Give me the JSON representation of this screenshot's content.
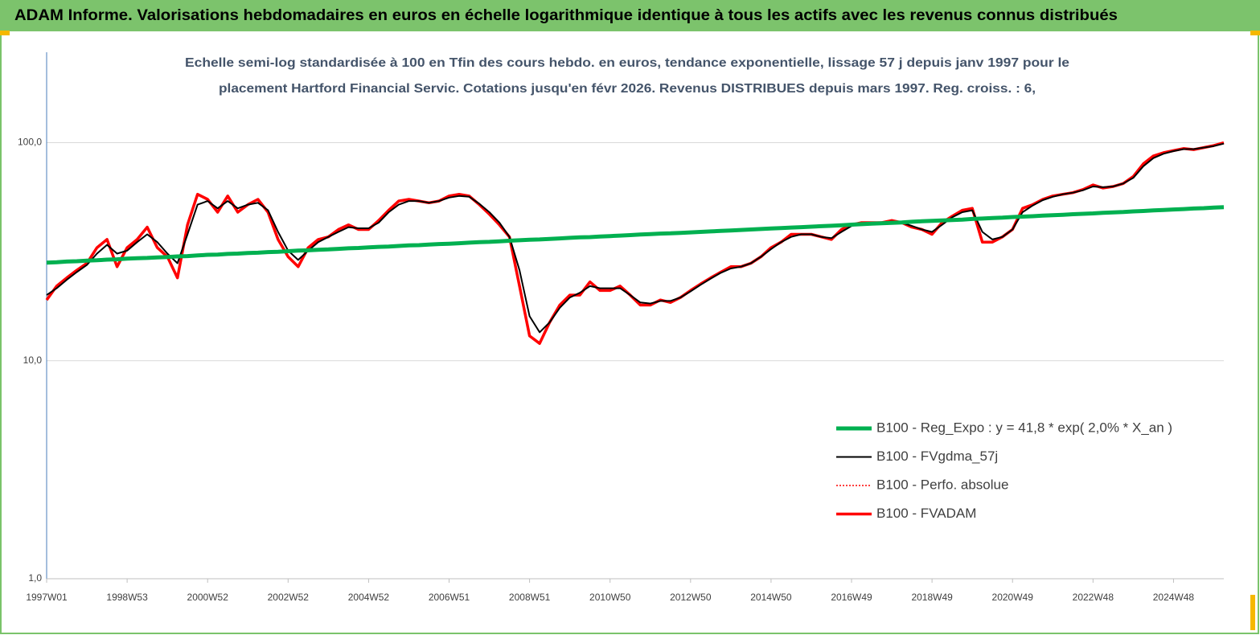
{
  "chart_data": {
    "type": "line",
    "title": "ADAM Informe. Valorisations hebdomadaires en euros en échelle logarithmique identique à tous les actifs avec les revenus connus distribués",
    "subtitle": [
      "Echelle semi-log standardisée à 100 en Tfin des cours hebdo. en euros, tendance exponentielle, lissage 57 j depuis janv 1997 pour le",
      "placement Hartford Financial Servic. Cotations jusqu'en févr 2026. Revenus DISTRIBUES depuis mars 1997. Reg. croiss. : 6,"
    ],
    "log_scale": true,
    "grid": true,
    "legend": "lower right",
    "ylim": [
      1,
      260
    ],
    "yticks": [
      {
        "value": 1,
        "label": "1,0"
      },
      {
        "value": 10,
        "label": "10,0"
      },
      {
        "value": 100,
        "label": "100,0"
      }
    ],
    "categories": [
      "1997W01",
      null,
      null,
      null,
      null,
      null,
      null,
      null,
      "1998W53",
      null,
      null,
      null,
      null,
      null,
      null,
      null,
      "2000W52",
      null,
      null,
      null,
      null,
      null,
      null,
      null,
      "2002W52",
      null,
      null,
      null,
      null,
      null,
      null,
      null,
      "2004W52",
      null,
      null,
      null,
      null,
      null,
      null,
      null,
      "2006W51",
      null,
      null,
      null,
      null,
      null,
      null,
      null,
      "2008W51",
      null,
      null,
      null,
      null,
      null,
      null,
      null,
      "2010W50",
      null,
      null,
      null,
      null,
      null,
      null,
      null,
      "2012W50",
      null,
      null,
      null,
      null,
      null,
      null,
      null,
      "2014W50",
      null,
      null,
      null,
      null,
      null,
      null,
      null,
      "2016W49",
      null,
      null,
      null,
      null,
      null,
      null,
      null,
      "2018W49",
      null,
      null,
      null,
      null,
      null,
      null,
      null,
      "2020W49",
      null,
      null,
      null,
      null,
      null,
      null,
      null,
      "2022W48",
      null,
      null,
      null,
      null,
      null,
      null,
      null,
      "2024W48",
      null,
      null,
      null,
      null,
      null
    ],
    "series": [
      {
        "name": "B100 - Reg_Expo : y = 41,8 *  exp( 2,0% *  X_an )",
        "color": "#00b050",
        "linewidth": 5,
        "style": "solid",
        "values": [
          28.2,
          28.3,
          28.5,
          28.6,
          28.8,
          28.9,
          29.1,
          29.2,
          29.4,
          29.5,
          29.6,
          29.8,
          29.9,
          30.1,
          30.2,
          30.4,
          30.6,
          30.7,
          30.9,
          31.0,
          31.2,
          31.3,
          31.5,
          31.6,
          31.8,
          32.0,
          32.1,
          32.3,
          32.4,
          32.6,
          32.8,
          32.9,
          33.1,
          33.3,
          33.4,
          33.6,
          33.8,
          33.9,
          34.1,
          34.3,
          34.4,
          34.6,
          34.8,
          35.0,
          35.1,
          35.3,
          35.5,
          35.7,
          35.9,
          36.0,
          36.2,
          36.4,
          36.6,
          36.8,
          36.9,
          37.1,
          37.3,
          37.5,
          37.7,
          37.9,
          38.1,
          38.3,
          38.4,
          38.6,
          38.8,
          39.0,
          39.2,
          39.4,
          39.6,
          39.8,
          40.0,
          40.2,
          40.4,
          40.6,
          40.8,
          41.0,
          41.2,
          41.4,
          41.6,
          41.8,
          42.1,
          42.3,
          42.5,
          42.7,
          42.9,
          43.1,
          43.4,
          43.6,
          43.8,
          44.0,
          44.2,
          44.4,
          44.7,
          44.9,
          45.1,
          45.3,
          45.6,
          45.8,
          46.0,
          46.3,
          46.5,
          46.7,
          47.0,
          47.2,
          47.4,
          47.7,
          47.9,
          48.1,
          48.4,
          48.6,
          48.9,
          49.1,
          49.4,
          49.6,
          49.9,
          50.1,
          50.4,
          50.6
        ]
      },
      {
        "name": "B100 - FVgdma_57j",
        "color": "#000000",
        "linewidth": 2,
        "style": "solid",
        "values": [
          20,
          21.5,
          23.5,
          25.5,
          27.5,
          31,
          34,
          31,
          32,
          35,
          38,
          35,
          31,
          28,
          38,
          52,
          54,
          50,
          54,
          50,
          52,
          53,
          49,
          39,
          32,
          29,
          32,
          35,
          37,
          39,
          41,
          40.5,
          40.5,
          43,
          48,
          52,
          54,
          54,
          53,
          54,
          56,
          57,
          56.5,
          52.5,
          48,
          43,
          37,
          26,
          16,
          13.5,
          15,
          17.5,
          19.5,
          20.5,
          22,
          21.5,
          21.5,
          21.5,
          20,
          18.5,
          18.3,
          18.8,
          18.8,
          19.5,
          20.8,
          22.3,
          23.8,
          25.3,
          26.5,
          27,
          28,
          30,
          32.5,
          35,
          37,
          38,
          38,
          37,
          36.5,
          39,
          41.5,
          42.5,
          43,
          43,
          43.5,
          43,
          41.5,
          40,
          39,
          42,
          45.5,
          48,
          49,
          39,
          36,
          37,
          40,
          48,
          51.5,
          54.5,
          56.5,
          58,
          59,
          60.5,
          63,
          62.5,
          63,
          65,
          69,
          78,
          85,
          89,
          91.5,
          93.5,
          93.5,
          95,
          96.5,
          99
        ]
      },
      {
        "name": "B100 - Perfo. absolue",
        "color": "#ff0000",
        "linewidth": 1.5,
        "style": "dotted",
        "values": [
          19,
          22,
          24,
          26,
          28,
          33,
          36,
          27,
          33,
          36,
          41,
          33,
          30,
          24,
          42,
          58,
          55,
          48,
          57,
          48,
          52,
          55,
          48,
          36,
          30,
          27,
          33,
          36,
          37,
          40,
          42,
          40,
          40,
          44,
          49,
          54,
          55,
          54,
          53,
          54,
          57,
          58,
          57,
          52,
          47,
          42,
          37,
          22,
          13,
          12,
          15,
          18,
          20,
          20,
          23,
          21,
          21,
          22,
          20,
          18,
          18,
          19,
          18.5,
          19.5,
          21,
          22.5,
          24,
          25.5,
          27,
          27,
          28,
          30,
          33,
          35,
          38,
          38,
          38,
          37,
          36,
          40,
          42,
          43,
          43,
          43,
          44,
          43,
          41,
          40,
          38,
          43,
          46,
          49,
          50,
          35,
          35,
          37,
          40,
          50,
          52,
          55,
          57,
          58,
          59,
          61,
          64,
          62,
          63,
          65,
          70,
          80,
          87,
          90,
          92,
          94,
          93,
          95,
          97,
          100
        ]
      },
      {
        "name": "B100 - FVADAM",
        "color": "#ff0000",
        "linewidth": 3.5,
        "style": "solid",
        "values": [
          19,
          22,
          24,
          26,
          28,
          33,
          36,
          27,
          33,
          36,
          41,
          33,
          30,
          24,
          42,
          58,
          55,
          48,
          57,
          48,
          52,
          55,
          48,
          36,
          30,
          27,
          33,
          36,
          37,
          40,
          42,
          40,
          40,
          44,
          49,
          54,
          55,
          54,
          53,
          54,
          57,
          58,
          57,
          52,
          47,
          42,
          37,
          22,
          13,
          12,
          15,
          18,
          20,
          20,
          23,
          21,
          21,
          22,
          20,
          18,
          18,
          19,
          18.5,
          19.5,
          21,
          22.5,
          24,
          25.5,
          27,
          27,
          28,
          30,
          33,
          35,
          38,
          38,
          38,
          37,
          36,
          40,
          42,
          43,
          43,
          43,
          44,
          43,
          41,
          40,
          38,
          43,
          46,
          49,
          50,
          35,
          35,
          37,
          40,
          50,
          52,
          55,
          57,
          58,
          59,
          61,
          64,
          62,
          63,
          65,
          70,
          80,
          87,
          90,
          92,
          94,
          93,
          95,
          97,
          100
        ]
      }
    ]
  }
}
